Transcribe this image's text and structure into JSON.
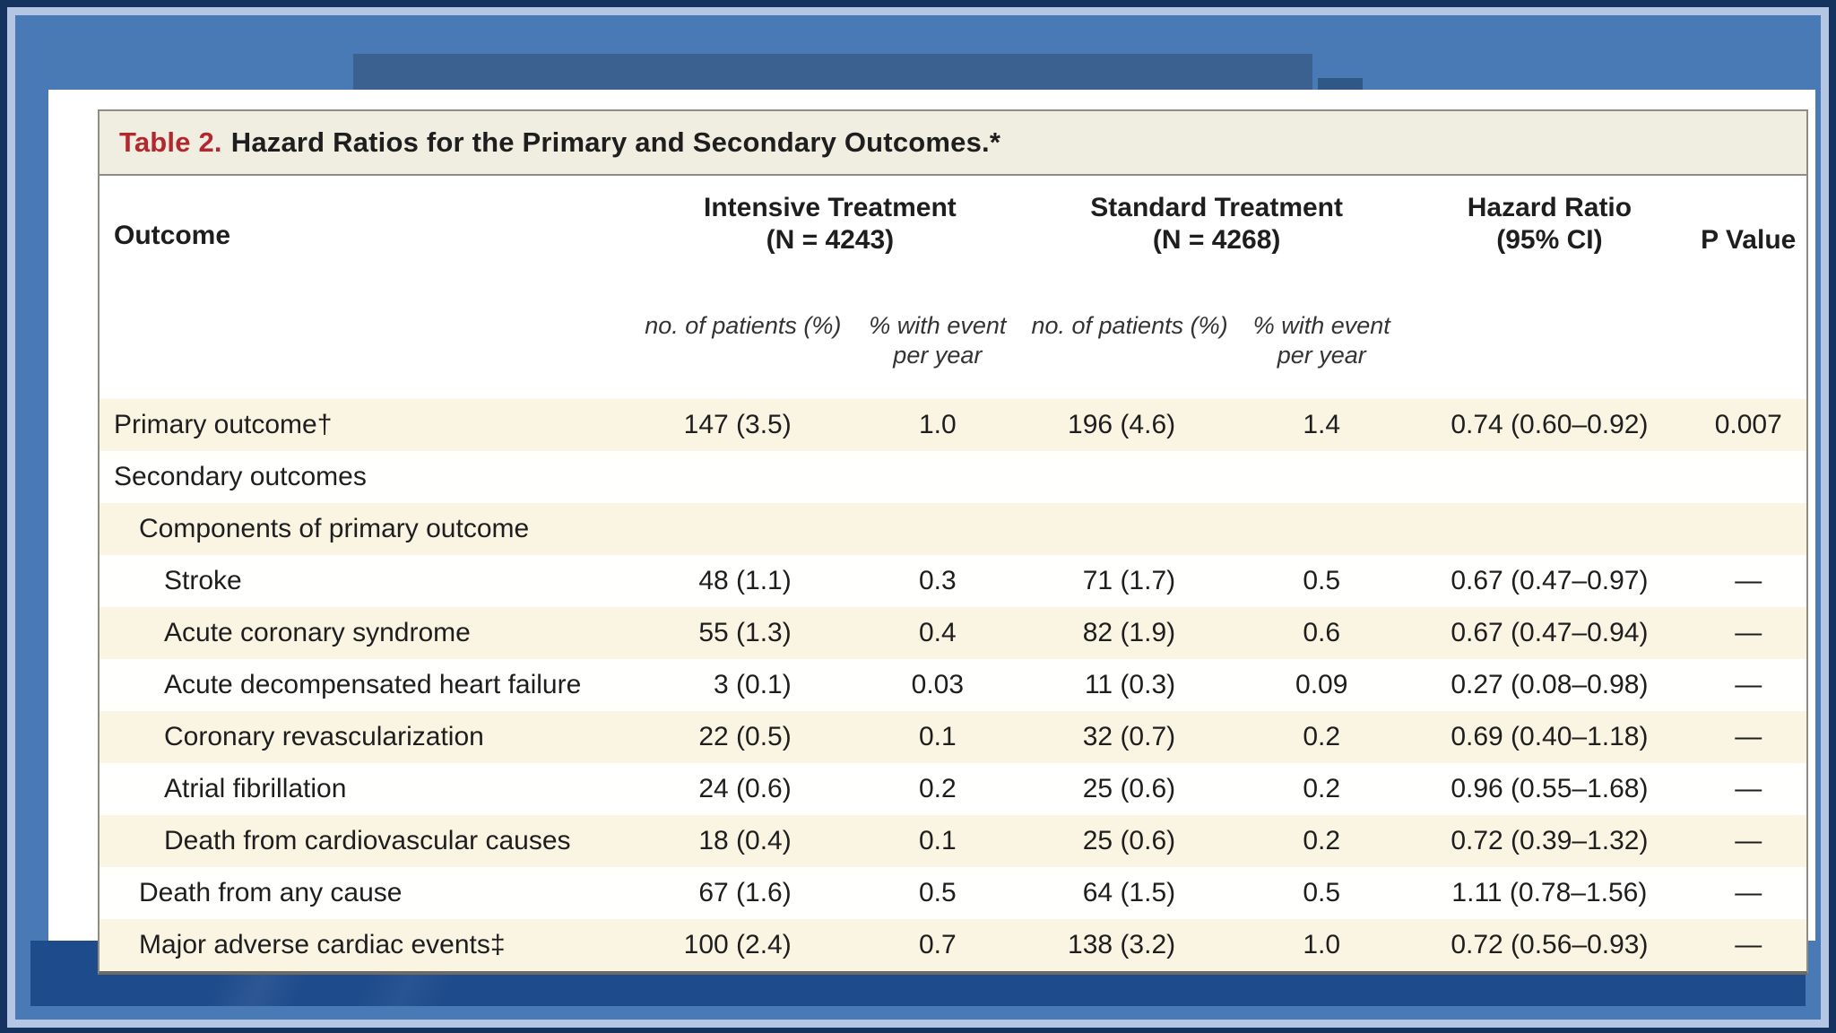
{
  "frame": {
    "colors": {
      "outer_navy": "#16335f",
      "inner_border": "#b5c5e4",
      "top_blue": "#4a7ab5",
      "bottom_blue": "#1e4b8c",
      "slide_bg": "#ffffff",
      "title_band_bg": "#f0ede1",
      "shaded_row_bg": "#faf4e3",
      "table_border": "#8d8d83",
      "title_accent_red": "#b2282e"
    }
  },
  "table": {
    "title_label": "Table 2.",
    "title_text": "Hazard Ratios for the Primary and Secondary Outcomes.*",
    "header": {
      "outcome": "Outcome",
      "intensive": {
        "title": "Intensive Treatment",
        "n": "(N = 4243)"
      },
      "standard": {
        "title": "Standard Treatment",
        "n": "(N = 4268)"
      },
      "hazard_ratio": {
        "title": "Hazard Ratio",
        "sub": "(95% CI)"
      },
      "p_value": "P Value",
      "sub_n": "no. of patients (%)",
      "sub_rate": "% with event per year"
    },
    "rows": [
      {
        "label": "Primary outcome†",
        "indent": 0,
        "shaded": true,
        "cells": [
          "147 (3.5)",
          "1.0",
          "196 (4.6)",
          "1.4",
          "0.74 (0.60–0.92)",
          "0.007"
        ]
      },
      {
        "label": "Secondary outcomes",
        "indent": 0,
        "shaded": false,
        "cells": [
          "",
          "",
          "",
          "",
          "",
          ""
        ]
      },
      {
        "label": "Components of primary outcome",
        "indent": 1,
        "shaded": true,
        "cells": [
          "",
          "",
          "",
          "",
          "",
          ""
        ]
      },
      {
        "label": "Stroke",
        "indent": 2,
        "shaded": false,
        "cells": [
          "48 (1.1)",
          "0.3",
          "71 (1.7)",
          "0.5",
          "0.67 (0.47–0.97)",
          "—"
        ]
      },
      {
        "label": "Acute coronary syndrome",
        "indent": 2,
        "shaded": true,
        "cells": [
          "55 (1.3)",
          "0.4",
          "82 (1.9)",
          "0.6",
          "0.67 (0.47–0.94)",
          "—"
        ]
      },
      {
        "label": "Acute decompensated heart failure",
        "indent": 2,
        "shaded": false,
        "cells": [
          "3 (0.1)",
          "0.03",
          "11 (0.3)",
          "0.09",
          "0.27 (0.08–0.98)",
          "—"
        ]
      },
      {
        "label": "Coronary revascularization",
        "indent": 2,
        "shaded": true,
        "cells": [
          "22 (0.5)",
          "0.1",
          "32 (0.7)",
          "0.2",
          "0.69 (0.40–1.18)",
          "—"
        ]
      },
      {
        "label": "Atrial fibrillation",
        "indent": 2,
        "shaded": false,
        "cells": [
          "24 (0.6)",
          "0.2",
          "25 (0.6)",
          "0.2",
          "0.96 (0.55–1.68)",
          "—"
        ]
      },
      {
        "label": "Death from cardiovascular causes",
        "indent": 2,
        "shaded": true,
        "cells": [
          "18 (0.4)",
          "0.1",
          "25 (0.6)",
          "0.2",
          "0.72 (0.39–1.32)",
          "—"
        ]
      },
      {
        "label": "Death from any cause",
        "indent": 1,
        "shaded": false,
        "cells": [
          "67 (1.6)",
          "0.5",
          "64 (1.5)",
          "0.5",
          "1.11 (0.78–1.56)",
          "—"
        ]
      },
      {
        "label": "Major adverse cardiac events‡",
        "indent": 1,
        "shaded": true,
        "cells": [
          "100 (2.4)",
          "0.7",
          "138 (3.2)",
          "1.0",
          "0.72 (0.56–0.93)",
          "—"
        ]
      }
    ]
  }
}
